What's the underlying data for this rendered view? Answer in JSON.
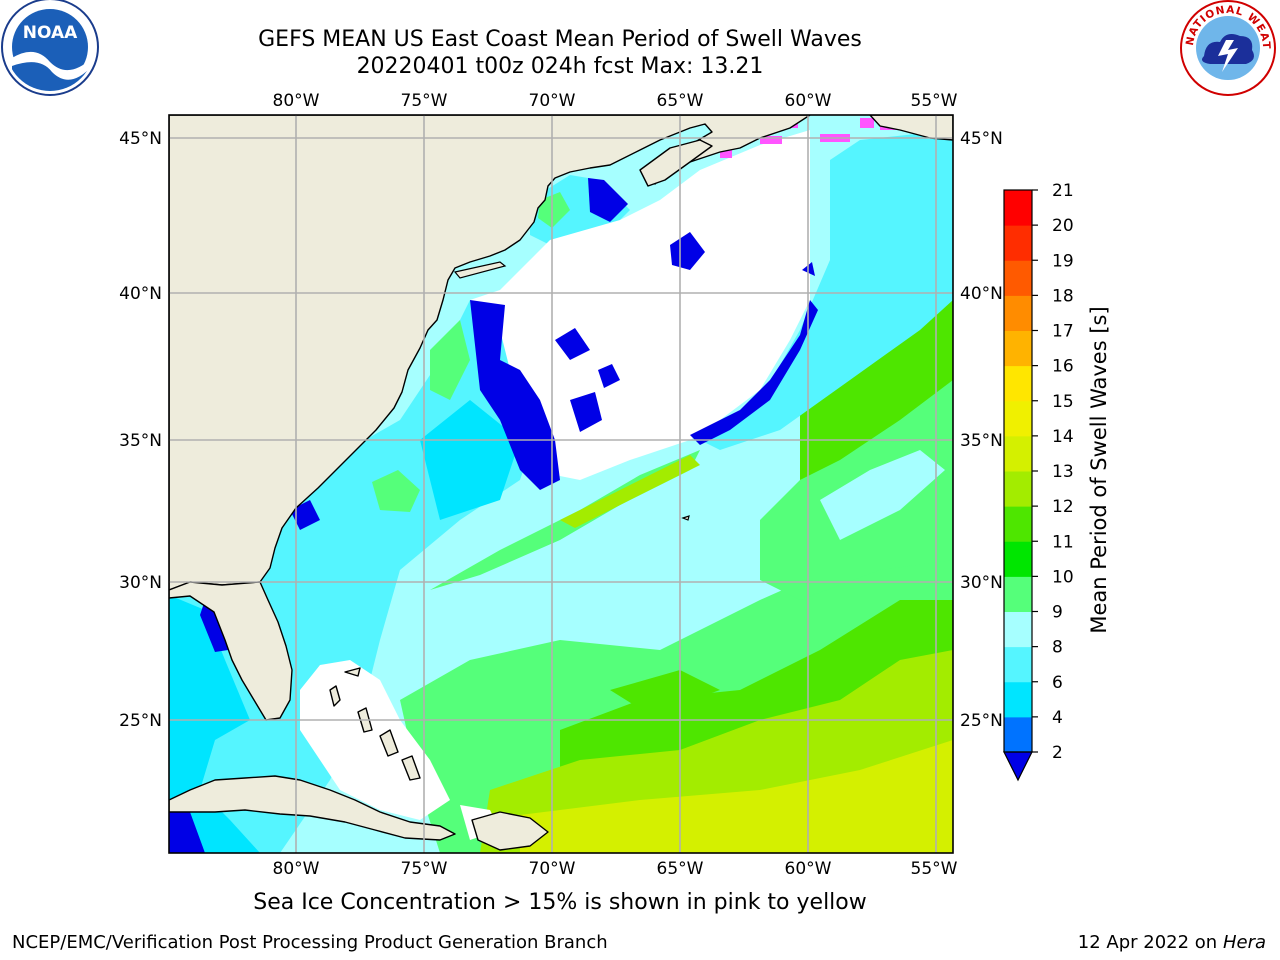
{
  "title": {
    "line1": "GEFS MEAN US East Coast Mean Period of Swell Waves",
    "line2": "20220401 t00z 024h fcst   Max: 13.21"
  },
  "logos": {
    "left": {
      "icon": "noaa-logo-icon",
      "text": "NOAA"
    },
    "right": {
      "icon": "nws-logo-icon",
      "text": "NATIONAL WEATHER SERVICE"
    }
  },
  "map": {
    "longitude_ticks": [
      "80°W",
      "75°W",
      "70°W",
      "65°W",
      "60°W",
      "55°W"
    ],
    "latitude_ticks": [
      "45°N",
      "40°N",
      "35°N",
      "30°N",
      "25°N"
    ],
    "colors": {
      "land": "#eeecdc",
      "no_data": "#ffffff",
      "grid": "#b0b0b0",
      "coast": "#000000"
    }
  },
  "colorbar": {
    "label": "Mean Period of Swell Waves [s]",
    "ticks": [
      "2",
      "4",
      "6",
      "8",
      "9",
      "10",
      "11",
      "12",
      "13",
      "14",
      "15",
      "16",
      "17",
      "18",
      "19",
      "20",
      "21"
    ],
    "colors": [
      "#0000e6",
      "#0073ff",
      "#00e5ff",
      "#55f5ff",
      "#a6ffff",
      "#55ff7a",
      "#00e600",
      "#4ee600",
      "#a3ec00",
      "#d4f000",
      "#f0f000",
      "#ffe600",
      "#ffb300",
      "#ff8c00",
      "#ff5a00",
      "#ff2d00",
      "#ff0000"
    ]
  },
  "caption": "Sea Ice Concentration > 15% is shown in pink to yellow",
  "footer": {
    "left": "NCEP/EMC/Verification Post Processing Product Generation Branch",
    "right_date": "12 Apr 2022 on ",
    "right_host": "Hera"
  }
}
